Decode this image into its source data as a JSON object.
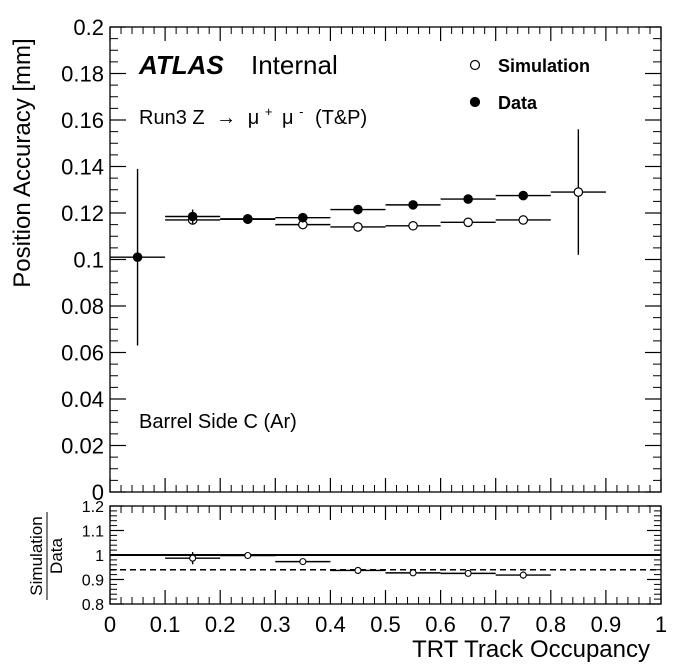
{
  "chart_data": [
    {
      "type": "scatter",
      "title": "",
      "xlabel": "TRT Track Occupancy",
      "ylabel": "Position Accuracy [mm]",
      "xlim": [
        0,
        1
      ],
      "ylim": [
        0,
        0.2
      ],
      "x_ticks": [
        "0",
        "0.1",
        "0.2",
        "0.3",
        "0.4",
        "0.5",
        "0.6",
        "0.7",
        "0.8",
        "0.9",
        "1"
      ],
      "y_ticks": [
        "0",
        "0.02",
        "0.04",
        "0.06",
        "0.08",
        "0.1",
        "0.12",
        "0.14",
        "0.16",
        "0.18",
        "0.2"
      ],
      "grid": false,
      "legend_position": "top-right",
      "annotations": {
        "atlas": "ATLAS",
        "internal": "Internal",
        "process_prefix": "Run3 Z",
        "arrow": "→",
        "mu": "μ",
        "plus": "+",
        "minus": "-",
        "process_suffix": "(T&P)",
        "region": "Barrel Side C (Ar)"
      },
      "series": [
        {
          "name": "Simulation",
          "marker": "open-circle",
          "points": [
            {
              "x": 0.15,
              "y": 0.117,
              "xerr": 0.05,
              "yerr": 0.002
            },
            {
              "x": 0.25,
              "y": 0.1173,
              "xerr": 0.05,
              "yerr": 0.001
            },
            {
              "x": 0.35,
              "y": 0.115,
              "xerr": 0.05,
              "yerr": 0.001
            },
            {
              "x": 0.45,
              "y": 0.114,
              "xerr": 0.05,
              "yerr": 0.001
            },
            {
              "x": 0.55,
              "y": 0.1145,
              "xerr": 0.05,
              "yerr": 0.001
            },
            {
              "x": 0.65,
              "y": 0.116,
              "xerr": 0.05,
              "yerr": 0.001
            },
            {
              "x": 0.75,
              "y": 0.117,
              "xerr": 0.05,
              "yerr": 0.001
            },
            {
              "x": 0.85,
              "y": 0.129,
              "xerr": 0.05,
              "yerr": 0.027
            }
          ]
        },
        {
          "name": "Data",
          "marker": "filled-circle",
          "points": [
            {
              "x": 0.05,
              "y": 0.101,
              "xerr": 0.05,
              "yerr": 0.038
            },
            {
              "x": 0.15,
              "y": 0.1185,
              "xerr": 0.05,
              "yerr": 0.003
            },
            {
              "x": 0.25,
              "y": 0.1175,
              "xerr": 0.05,
              "yerr": 0.001
            },
            {
              "x": 0.35,
              "y": 0.118,
              "xerr": 0.05,
              "yerr": 0.002
            },
            {
              "x": 0.45,
              "y": 0.1215,
              "xerr": 0.05,
              "yerr": 0.001
            },
            {
              "x": 0.55,
              "y": 0.1235,
              "xerr": 0.05,
              "yerr": 0.001
            },
            {
              "x": 0.65,
              "y": 0.126,
              "xerr": 0.05,
              "yerr": 0.001
            },
            {
              "x": 0.75,
              "y": 0.1275,
              "xerr": 0.05,
              "yerr": 0.002
            }
          ]
        }
      ]
    },
    {
      "type": "scatter",
      "title": "",
      "xlabel": "TRT Track Occupancy",
      "ylabel_numerator": "Simulation",
      "ylabel_denominator": "Data",
      "xlim": [
        0,
        1
      ],
      "ylim": [
        0.8,
        1.2
      ],
      "y_ticks": [
        "0.8",
        "0.9",
        "1",
        "1.1",
        "1.2"
      ],
      "reference_lines": [
        {
          "y": 1.0,
          "style": "solid"
        },
        {
          "y": 0.94,
          "style": "dashed"
        }
      ],
      "series": [
        {
          "name": "Simulation/Data",
          "marker": "open-circle",
          "points": [
            {
              "x": 0.15,
              "y": 0.987,
              "xerr": 0.05,
              "yerr": 0.025
            },
            {
              "x": 0.25,
              "y": 0.998,
              "xerr": 0.05,
              "yerr": 0.01
            },
            {
              "x": 0.35,
              "y": 0.973,
              "xerr": 0.05,
              "yerr": 0.01
            },
            {
              "x": 0.45,
              "y": 0.937,
              "xerr": 0.05,
              "yerr": 0.007
            },
            {
              "x": 0.55,
              "y": 0.927,
              "xerr": 0.05,
              "yerr": 0.007
            },
            {
              "x": 0.65,
              "y": 0.925,
              "xerr": 0.05,
              "yerr": 0.007
            },
            {
              "x": 0.75,
              "y": 0.918,
              "xerr": 0.05,
              "yerr": 0.015
            }
          ]
        }
      ]
    }
  ]
}
